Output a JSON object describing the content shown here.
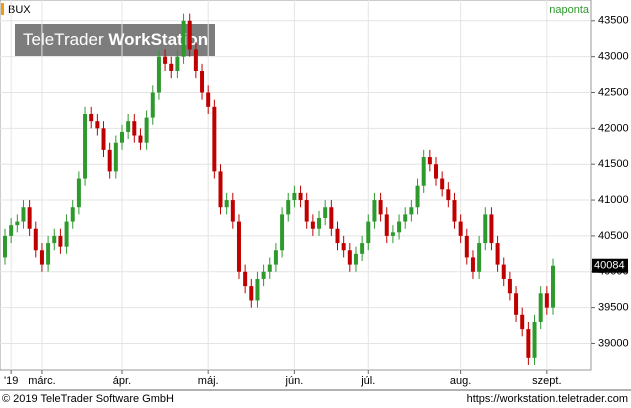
{
  "chart_data": {
    "type": "candlestick",
    "title": "BUX",
    "frequency": "naponta",
    "watermark_brand": "TeleTrader",
    "watermark_product": "WorkStation",
    "copyright": "© 2019 TeleTrader Software GmbH",
    "url": "https://workstation.teletrader.com",
    "categories": [
      null,
      "'19",
      null,
      null,
      null,
      null,
      "márc.",
      null,
      null,
      null,
      null,
      null,
      null,
      null,
      null,
      null,
      null,
      null,
      null,
      "ápr.",
      null,
      null,
      null,
      null,
      null,
      null,
      null,
      null,
      null,
      null,
      null,
      null,
      null,
      "máj.",
      null,
      null,
      null,
      null,
      null,
      null,
      null,
      null,
      null,
      null,
      null,
      null,
      null,
      "jún.",
      null,
      null,
      null,
      null,
      null,
      null,
      null,
      null,
      null,
      null,
      null,
      "júl.",
      null,
      null,
      null,
      null,
      null,
      null,
      null,
      null,
      null,
      null,
      null,
      null,
      null,
      null,
      "aug.",
      null,
      null,
      null,
      null,
      null,
      null,
      null,
      null,
      null,
      null,
      null,
      null,
      null,
      "szept.",
      null
    ],
    "ylim": [
      38630,
      43790
    ],
    "yticks": [
      39000,
      39500,
      40000,
      40500,
      41000,
      41500,
      42000,
      42500,
      43000,
      43500
    ],
    "up_color": "#2e9a2e",
    "down_color": "#c00000",
    "series": [
      {
        "name": "BUX",
        "open": [
          40200,
          40500,
          40650,
          40700,
          40900,
          40600,
          40300,
          40100,
          40400,
          40500,
          40350,
          40700,
          40900,
          41300,
          42200,
          42100,
          42000,
          41700,
          41400,
          41800,
          41950,
          42100,
          41900,
          41800,
          42150,
          42500,
          43000,
          42900,
          42800,
          43000,
          43500,
          43100,
          42800,
          42500,
          42300,
          41400,
          40900,
          41000,
          40700,
          40000,
          39800,
          39600,
          39900,
          40000,
          40100,
          40300,
          40800,
          41000,
          41100,
          41000,
          40700,
          40600,
          40750,
          40900,
          40600,
          40400,
          40300,
          40100,
          40250,
          40400,
          40700,
          41000,
          40800,
          40500,
          40550,
          40700,
          40800,
          40900,
          41200,
          41600,
          41500,
          41300,
          41150,
          41000,
          40700,
          40500,
          40200,
          40000,
          40400,
          40800,
          40400,
          40100,
          39900,
          39700,
          39400,
          39200,
          38800,
          39300,
          39700,
          39500
        ],
        "high": [
          40600,
          40750,
          40800,
          41000,
          41000,
          40700,
          40400,
          40500,
          40600,
          40600,
          40800,
          41000,
          41400,
          42300,
          42300,
          42200,
          42100,
          41800,
          41900,
          42050,
          42200,
          42200,
          42000,
          42250,
          42600,
          43100,
          43100,
          43000,
          43100,
          43600,
          43600,
          43200,
          42900,
          42600,
          42400,
          41500,
          41100,
          41100,
          40800,
          40100,
          39900,
          40000,
          40100,
          40200,
          40400,
          40900,
          41100,
          41200,
          41200,
          41100,
          40800,
          40850,
          41000,
          41000,
          40700,
          40500,
          40400,
          40350,
          40500,
          40800,
          41100,
          41100,
          40900,
          40650,
          40800,
          40900,
          41000,
          41300,
          41700,
          41700,
          41600,
          41400,
          41250,
          41100,
          40800,
          40600,
          40300,
          40500,
          40900,
          40900,
          40500,
          40200,
          40000,
          39800,
          39500,
          39300,
          39400,
          39800,
          39800,
          40184
        ],
        "low": [
          40100,
          40400,
          40550,
          40600,
          40500,
          40200,
          40000,
          40000,
          40300,
          40250,
          40250,
          40600,
          40800,
          41200,
          42000,
          41900,
          41600,
          41300,
          41300,
          41700,
          41850,
          41800,
          41700,
          41700,
          42050,
          42400,
          42800,
          42700,
          42700,
          42900,
          43000,
          42700,
          42400,
          42200,
          41300,
          40800,
          40800,
          40600,
          39900,
          39700,
          39500,
          39500,
          39800,
          39900,
          40000,
          40200,
          40700,
          40900,
          40900,
          40600,
          40500,
          40500,
          40650,
          40500,
          40300,
          40200,
          40000,
          40000,
          40150,
          40300,
          40600,
          40700,
          40400,
          40400,
          40450,
          40600,
          40700,
          40800,
          41100,
          41400,
          41200,
          41050,
          40900,
          40600,
          40400,
          40100,
          39900,
          39900,
          40300,
          40300,
          40000,
          39800,
          39600,
          39300,
          39100,
          38700,
          38700,
          39200,
          39400,
          39400
        ],
        "close": [
          40500,
          40650,
          40700,
          40900,
          40600,
          40300,
          40100,
          40400,
          40500,
          40350,
          40700,
          40900,
          41300,
          42200,
          42100,
          42000,
          41700,
          41400,
          41800,
          41950,
          42100,
          41900,
          41800,
          42150,
          42500,
          43000,
          42900,
          42800,
          43000,
          43500,
          43100,
          42800,
          42500,
          42300,
          41400,
          40900,
          41000,
          40700,
          40000,
          39800,
          39600,
          39900,
          40000,
          40100,
          40300,
          40800,
          41000,
          41100,
          41000,
          40700,
          40600,
          40750,
          40900,
          40600,
          40400,
          40300,
          40100,
          40250,
          40400,
          40700,
          41000,
          40800,
          40500,
          40550,
          40700,
          40800,
          40900,
          41200,
          41600,
          41500,
          41300,
          41150,
          41000,
          40700,
          40500,
          40200,
          40000,
          40400,
          40800,
          40400,
          40100,
          39900,
          39700,
          39400,
          39200,
          38800,
          39300,
          39700,
          39500,
          40084
        ]
      }
    ]
  }
}
